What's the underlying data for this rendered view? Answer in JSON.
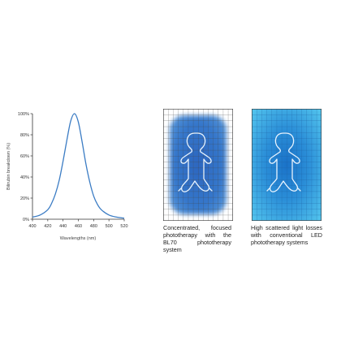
{
  "chart_data": {
    "type": "line",
    "title": "",
    "xlabel": "Wavelengths (nm)",
    "ylabel": "Bilirubin breakdown (%)",
    "xlim": [
      400,
      520
    ],
    "ylim": [
      0,
      100
    ],
    "x_ticks": [
      "400",
      "420",
      "440",
      "460",
      "480",
      "500",
      "520"
    ],
    "y_ticks": [
      "0%",
      "20%",
      "40%",
      "60%",
      "80%",
      "100%"
    ],
    "grid": false,
    "series": [
      {
        "color": "#3b7cc4",
        "x": [
          400,
          410,
          420,
          425,
          430,
          435,
          440,
          445,
          450,
          455,
          460,
          465,
          470,
          475,
          480,
          485,
          490,
          500,
          510,
          520
        ],
        "y": [
          2,
          4,
          9,
          15,
          24,
          37,
          55,
          75,
          93,
          100,
          92,
          73,
          52,
          35,
          22,
          14,
          9,
          4,
          2,
          1
        ]
      }
    ]
  },
  "panels": {
    "left_caption": "Concentrated, focused phototherapy with the BL70 phototherapy system",
    "right_caption": "High scattered light losses with conventional LED phototherapy systems"
  },
  "colors": {
    "curve": "#3b7cc4",
    "axis": "#333333",
    "grid_line": "#444444",
    "focused_blue": "#2e6fc4",
    "scattered_blue": "#44b8e8",
    "baby_outline": "#e8f4ff"
  }
}
